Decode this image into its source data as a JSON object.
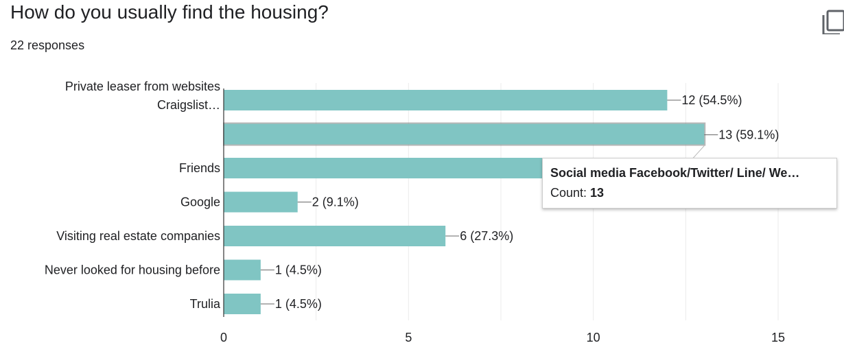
{
  "question": {
    "title": "How do you usually find the housing?",
    "responses": "22 responses"
  },
  "icons": {
    "copy": "copy-icon"
  },
  "colors": {
    "bar": "#80c5c3",
    "grid": "#ebebeb",
    "axis": "#333333",
    "text": "#202124"
  },
  "tooltip": {
    "label": "Social media Facebook/Twitter/ Line/ We…",
    "count_prefix": "Count: ",
    "count_value": "13"
  },
  "chart_data": {
    "type": "bar",
    "orientation": "horizontal",
    "categories": [
      [
        "Private leaser from websites",
        "Craigslist…"
      ],
      [
        ""
      ],
      [
        "Friends"
      ],
      [
        "Google"
      ],
      [
        "Visiting real estate companies"
      ],
      [
        "Never looked for housing before"
      ],
      [
        "Trulia"
      ]
    ],
    "values": [
      12,
      13,
      12,
      2,
      6,
      1,
      1
    ],
    "data_labels": [
      "12 (54.5%)",
      "13 (59.1%)",
      "",
      "2 (9.1%)",
      "6 (27.3%)",
      "1 (4.5%)",
      "1 (4.5%)"
    ],
    "highlighted_index": 1,
    "xlim": [
      0,
      15
    ],
    "xticks": [
      0,
      5,
      10,
      15
    ],
    "grid": true
  }
}
